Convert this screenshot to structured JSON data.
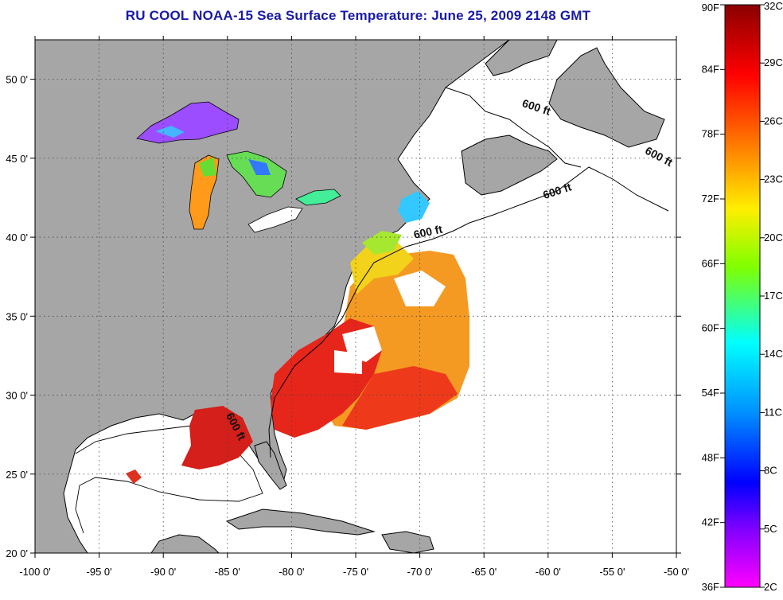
{
  "title": "RU COOL  NOAA-15  Sea Surface Temperature:  June 25, 2009 2148 GMT",
  "map": {
    "lon_range": [
      -100,
      -50
    ],
    "lat_range": [
      20,
      52.5
    ],
    "lon_ticks": [
      {
        "lon": -100,
        "label": "-100 0'"
      },
      {
        "lon": -95,
        "label": "-95 0'"
      },
      {
        "lon": -90,
        "label": "-90 0'"
      },
      {
        "lon": -85,
        "label": "-85 0'"
      },
      {
        "lon": -80,
        "label": "-80 0'"
      },
      {
        "lon": -75,
        "label": "-75 0'"
      },
      {
        "lon": -70,
        "label": "-70 0'"
      },
      {
        "lon": -65,
        "label": "-65 0'"
      },
      {
        "lon": -60,
        "label": "-60 0'"
      },
      {
        "lon": -55,
        "label": "-55 0'"
      },
      {
        "lon": -50,
        "label": "-50 0'"
      }
    ],
    "lat_ticks": [
      {
        "lat": 20,
        "label": "20 0'"
      },
      {
        "lat": 25,
        "label": "25 0'"
      },
      {
        "lat": 30,
        "label": "30 0'"
      },
      {
        "lat": 35,
        "label": "35 0'"
      },
      {
        "lat": 40,
        "label": "40 0'"
      },
      {
        "lat": 45,
        "label": "45 0'"
      },
      {
        "lat": 50,
        "label": "50 0'"
      }
    ],
    "grid": "dotted",
    "land_color": "#a6a6a6",
    "ocean_color": "#ffffff",
    "contour_labels": [
      {
        "text": "600 ft",
        "lon": -61.0,
        "lat": 48.0,
        "angle": 18
      },
      {
        "text": "600 ft",
        "lon": -51.5,
        "lat": 44.9,
        "angle": 28
      },
      {
        "text": "600 ft",
        "lon": -59.2,
        "lat": 42.7,
        "angle": -18
      },
      {
        "text": "600 ft",
        "lon": -69.3,
        "lat": 40.1,
        "angle": -12
      },
      {
        "text": "600 ft",
        "lon": -84.6,
        "lat": 27.9,
        "angle": 62
      }
    ]
  },
  "colorbar": {
    "fahrenheit_labels": [
      "90F",
      "84F",
      "78F",
      "72F",
      "66F",
      "60F",
      "54F",
      "48F",
      "42F",
      "36F"
    ],
    "celsius_labels": [
      "32C",
      "29C",
      "26C",
      "23C",
      "20C",
      "17C",
      "14C",
      "11C",
      "8C",
      "5C",
      "2C"
    ],
    "celsius_range": [
      2,
      32
    ],
    "fahrenheit_range": [
      36,
      90
    ],
    "colors_top_to_bottom": [
      "#8b0000",
      "#ff0000",
      "#ff7a00",
      "#ffee00",
      "#80ff00",
      "#00ffff",
      "#0090ff",
      "#0000ff",
      "#8000ff",
      "#ff00ff"
    ]
  }
}
